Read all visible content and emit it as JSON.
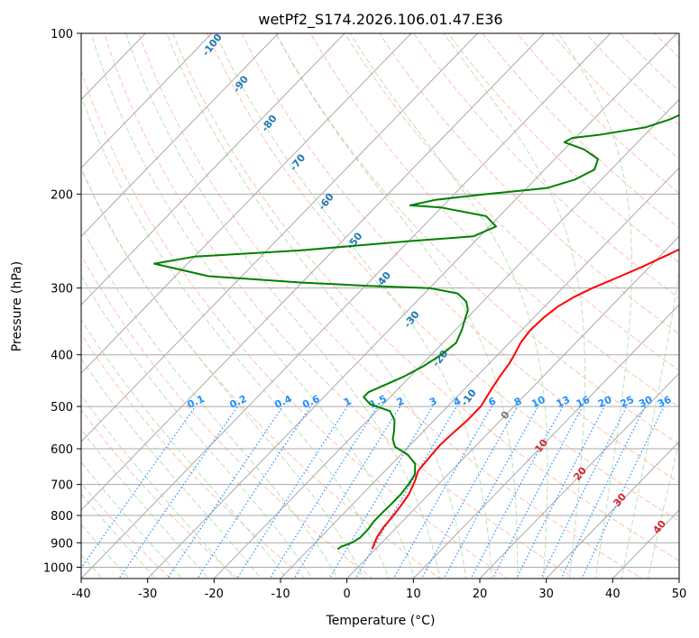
{
  "chart_data": {
    "type": "line",
    "subtype": "skew-t log-p diagram",
    "title": "wetPf2_S174.2026.106.01.47.E36",
    "xlabel": "Temperature (°C)",
    "ylabel": "Pressure (hPa)",
    "xlim": [
      -40,
      50
    ],
    "ylim": [
      1050,
      100
    ],
    "y_scale": "log",
    "grid": true,
    "x_ticks": [
      "-40",
      "-30",
      "-20",
      "-10",
      "0",
      "10",
      "20",
      "30",
      "40",
      "50"
    ],
    "y_ticks": [
      "100",
      "200",
      "300",
      "400",
      "500",
      "600",
      "700",
      "800",
      "900",
      "1000"
    ],
    "series": [
      {
        "color": "#ff0000",
        "points": [
          [
            -0.5,
            925
          ],
          [
            -1.5,
            880
          ],
          [
            -2,
            840
          ],
          [
            -2.2,
            800
          ],
          [
            -2.5,
            770
          ],
          [
            -3,
            730
          ],
          [
            -4,
            690
          ],
          [
            -5,
            660
          ],
          [
            -5.3,
            620
          ],
          [
            -5.5,
            590
          ],
          [
            -5.3,
            560
          ],
          [
            -5,
            530
          ],
          [
            -5,
            500
          ],
          [
            -5.5,
            480
          ],
          [
            -6,
            460
          ],
          [
            -6.5,
            440
          ],
          [
            -7,
            415
          ],
          [
            -7.5,
            400
          ],
          [
            -8.3,
            380
          ],
          [
            -8.7,
            360
          ],
          [
            -8.5,
            340
          ],
          [
            -8,
            325
          ],
          [
            -7,
            312
          ],
          [
            -5.5,
            300
          ],
          [
            -3,
            285
          ],
          [
            -1,
            273
          ],
          [
            1,
            260
          ],
          [
            3,
            247
          ],
          [
            5,
            235
          ],
          [
            6.5,
            225
          ],
          [
            8,
            212
          ],
          [
            9,
            200
          ],
          [
            10,
            190
          ],
          [
            11,
            180
          ],
          [
            12.5,
            170
          ],
          [
            14.5,
            160
          ],
          [
            17,
            150
          ],
          [
            19,
            142
          ],
          [
            20.5,
            135
          ],
          [
            21.5,
            128
          ],
          [
            22,
            120
          ],
          [
            22.5,
            113
          ],
          [
            23.5,
            107
          ],
          [
            25,
            103
          ],
          [
            26.5,
            100
          ]
        ]
      },
      {
        "color": "#008000",
        "points": [
          [
            -5.7,
            925
          ],
          [
            -5.5,
            915
          ],
          [
            -4.5,
            900
          ],
          [
            -4,
            880
          ],
          [
            -4,
            850
          ],
          [
            -4.3,
            820
          ],
          [
            -4.3,
            790
          ],
          [
            -4.2,
            760
          ],
          [
            -4.2,
            730
          ],
          [
            -4.5,
            700
          ],
          [
            -5,
            670
          ],
          [
            -6.5,
            640
          ],
          [
            -9,
            615
          ],
          [
            -12,
            595
          ],
          [
            -13.5,
            575
          ],
          [
            -14.5,
            555
          ],
          [
            -16,
            530
          ],
          [
            -18,
            510
          ],
          [
            -22,
            495
          ],
          [
            -24,
            480
          ],
          [
            -24,
            470
          ],
          [
            -22.5,
            455
          ],
          [
            -21,
            440
          ],
          [
            -19.5,
            420
          ],
          [
            -18.5,
            400
          ],
          [
            -18,
            380
          ],
          [
            -19,
            360
          ],
          [
            -20,
            345
          ],
          [
            -21,
            330
          ],
          [
            -22.5,
            318
          ],
          [
            -25,
            307
          ],
          [
            -30,
            300
          ],
          [
            -40,
            297
          ],
          [
            -45,
            295
          ],
          [
            -50,
            293
          ],
          [
            -65,
            285
          ],
          [
            -75,
            270
          ],
          [
            -70,
            262
          ],
          [
            -55,
            255
          ],
          [
            -40,
            245
          ],
          [
            -31,
            240
          ],
          [
            -29,
            230
          ],
          [
            -32,
            220
          ],
          [
            -40,
            212
          ],
          [
            -45,
            210
          ],
          [
            -42,
            205
          ],
          [
            -35,
            200
          ],
          [
            -27,
            195
          ],
          [
            -24,
            188
          ],
          [
            -22.5,
            180
          ],
          [
            -23.5,
            172
          ],
          [
            -27,
            165
          ],
          [
            -31,
            160
          ],
          [
            -30.5,
            157
          ],
          [
            -27,
            155
          ],
          [
            -21,
            150
          ],
          [
            -18.5,
            145
          ],
          [
            -17,
            140
          ],
          [
            -15,
            135
          ],
          [
            -14,
            130
          ],
          [
            -13,
            125
          ],
          [
            -12.5,
            120
          ],
          [
            -11.5,
            115
          ],
          [
            -10.5,
            110
          ],
          [
            -9.5,
            105
          ],
          [
            -8.5,
            100
          ]
        ]
      }
    ],
    "dry_adiabat_labels": [
      "-100",
      "-90",
      "-80",
      "-70",
      "-60",
      "-50",
      "-40",
      "-30",
      "-20",
      "-10"
    ],
    "moist_adiabat_labels": [
      "0",
      "10",
      "20",
      "30",
      "40"
    ],
    "mixing_ratio_labels": [
      "0.1",
      "0.2",
      "0.4",
      "0.6",
      "1",
      "1.5",
      "2",
      "3",
      "4",
      "6",
      "8",
      "10",
      "13",
      "16",
      "20",
      "25",
      "30",
      "36"
    ],
    "colors": {
      "isotherm": "#aaaaaa",
      "isobar": "#aaaaaa",
      "dry_adiabat": "#fbb4a0",
      "moist_adiabat": "#b7dcb4",
      "mixing_ratio": "#1f8fff",
      "dry_label": "#1f77b4",
      "moist_label": "#d62728",
      "mr_label": "#1f8fff"
    }
  }
}
